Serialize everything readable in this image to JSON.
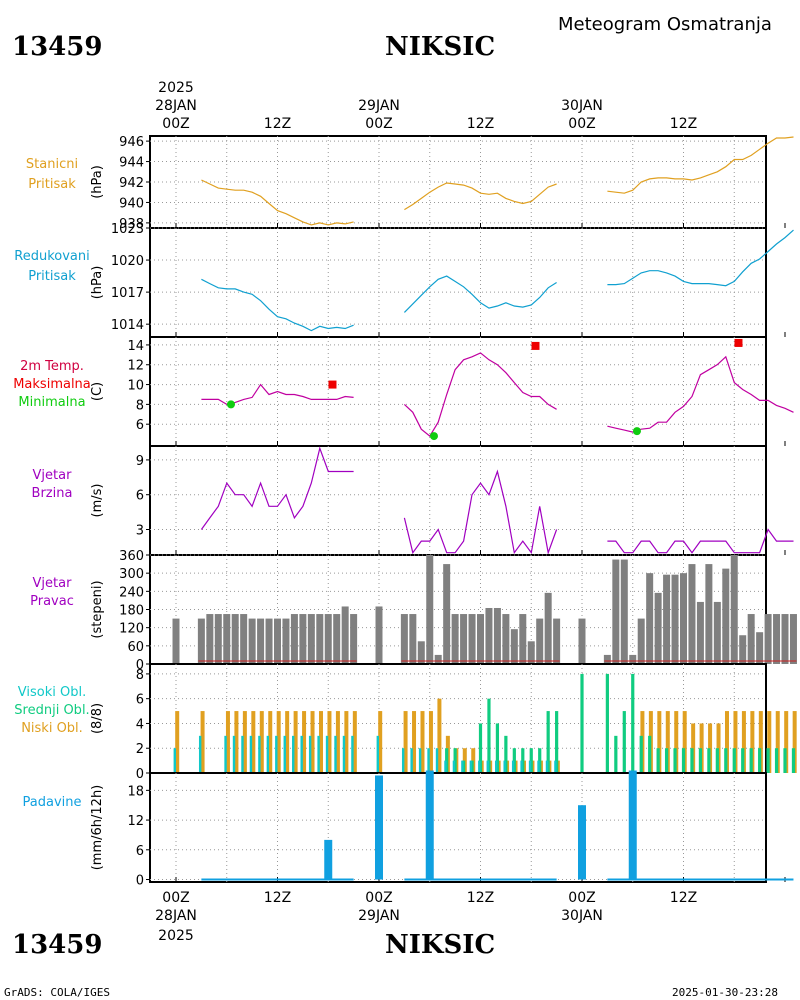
{
  "header": {
    "station_id": "13459",
    "station_name": "NIKSIC",
    "product": "Meteogram Osmatranja"
  },
  "time_axis": {
    "year": "2025",
    "top_ticks": [
      {
        "t": 0,
        "label": "00Z",
        "date": "28JAN"
      },
      {
        "t": 12,
        "label": "12Z"
      },
      {
        "t": 24,
        "label": "00Z",
        "date": "29JAN"
      },
      {
        "t": 36,
        "label": "12Z"
      },
      {
        "t": 48,
        "label": "00Z",
        "date": "30JAN"
      },
      {
        "t": 60,
        "label": "12Z"
      }
    ]
  },
  "footer": {
    "credit": "GrADS: COLA/IGES",
    "timestamp": "2025-01-30-23:28"
  },
  "colors": {
    "station_pressure": "#e0a020",
    "reduced_pressure": "#10a0d0",
    "temp_line": "#c000a0",
    "tmax": "#ee0000",
    "tmin": "#10cc10",
    "wind_speed": "#a000c0",
    "wind_dir": "#808080",
    "cloud_high": "#10c8c8",
    "cloud_mid": "#10cc80",
    "cloud_low": "#e0a020",
    "precip": "#10a0e0"
  },
  "chart_data": [
    {
      "type": "line",
      "panel": "station_pressure",
      "labels": [
        "Stanicni",
        "Pritisak"
      ],
      "ylabel": "(hPa)",
      "ylim": [
        937.5,
        946.5
      ],
      "yticks": [
        938,
        940,
        942,
        944,
        946
      ],
      "series": [
        {
          "x": [
            3,
            4,
            5,
            6,
            7,
            8,
            9,
            10,
            11,
            12,
            13,
            14,
            15,
            16,
            17,
            18,
            19,
            20,
            21
          ],
          "y": [
            942.2,
            941.8,
            941.4,
            941.3,
            941.2,
            941.2,
            941.0,
            940.6,
            939.9,
            939.2,
            938.9,
            938.5,
            938.1,
            937.8,
            938.0,
            937.8,
            938.0,
            937.9,
            938.1
          ]
        },
        {
          "x": [
            27,
            28,
            29,
            30,
            31,
            32,
            33,
            34,
            35,
            36,
            37,
            38,
            39,
            40,
            41,
            42,
            43,
            44,
            45
          ],
          "y": [
            939.3,
            939.8,
            940.4,
            941.0,
            941.5,
            941.9,
            941.8,
            941.7,
            941.4,
            940.9,
            940.8,
            940.9,
            940.4,
            940.1,
            939.9,
            940.1,
            940.8,
            941.5,
            941.8
          ]
        },
        {
          "x": [
            51,
            52,
            53,
            54,
            55,
            56,
            57,
            58,
            59,
            60,
            61,
            62,
            63,
            64,
            65,
            66,
            67,
            68,
            69,
            70,
            71,
            72,
            73
          ],
          "y": [
            941.1,
            941.0,
            940.9,
            941.2,
            942.0,
            942.3,
            942.4,
            942.4,
            942.3,
            942.3,
            942.2,
            942.4,
            942.7,
            943.0,
            943.5,
            944.2,
            944.2,
            944.6,
            945.2,
            945.8,
            946.3,
            946.3,
            946.4
          ]
        }
      ]
    },
    {
      "type": "line",
      "panel": "reduced_pressure",
      "labels": [
        "Redukovani",
        "Pritisak"
      ],
      "ylabel": "(hPa)",
      "ylim": [
        1012.8,
        1023.0
      ],
      "yticks": [
        1014,
        1017,
        1020,
        1023
      ],
      "series": [
        {
          "x": [
            3,
            4,
            5,
            6,
            7,
            8,
            9,
            10,
            11,
            12,
            13,
            14,
            15,
            16,
            17,
            18,
            19,
            20,
            21
          ],
          "y": [
            1018.2,
            1017.8,
            1017.4,
            1017.3,
            1017.3,
            1017.0,
            1016.8,
            1016.2,
            1015.4,
            1014.7,
            1014.5,
            1014.1,
            1013.8,
            1013.4,
            1013.8,
            1013.6,
            1013.7,
            1013.6,
            1013.9
          ]
        },
        {
          "x": [
            27,
            28,
            29,
            30,
            31,
            32,
            33,
            34,
            35,
            36,
            37,
            38,
            39,
            40,
            41,
            42,
            43,
            44,
            45
          ],
          "y": [
            1015.1,
            1015.9,
            1016.7,
            1017.5,
            1018.2,
            1018.5,
            1018.0,
            1017.5,
            1016.8,
            1016.0,
            1015.5,
            1015.7,
            1016.0,
            1015.7,
            1015.6,
            1015.8,
            1016.5,
            1017.4,
            1017.9
          ]
        },
        {
          "x": [
            51,
            52,
            53,
            54,
            55,
            56,
            57,
            58,
            59,
            60,
            61,
            62,
            63,
            64,
            65,
            66,
            67,
            68,
            69,
            70,
            71,
            72,
            73
          ],
          "y": [
            1017.7,
            1017.7,
            1017.8,
            1018.3,
            1018.8,
            1019.0,
            1019.0,
            1018.8,
            1018.5,
            1018.0,
            1017.8,
            1017.8,
            1017.8,
            1017.7,
            1017.6,
            1018.0,
            1018.9,
            1019.7,
            1020.1,
            1020.8,
            1021.5,
            1022.1,
            1022.8
          ]
        }
      ]
    },
    {
      "type": "line",
      "panel": "temperature",
      "labels": [
        "2m Temp.",
        "Maksimalna",
        "Minimalna"
      ],
      "ylabel": "(C)",
      "ylim": [
        3.8,
        14.8
      ],
      "yticks": [
        6,
        8,
        10,
        12,
        14
      ],
      "series": [
        {
          "x": [
            3,
            4,
            5,
            6,
            7,
            8,
            9,
            10,
            11,
            12,
            13,
            14,
            15,
            16,
            17,
            18,
            19,
            20,
            21
          ],
          "y": [
            8.5,
            8.5,
            8.5,
            8.0,
            8.2,
            8.5,
            8.7,
            10.0,
            9.0,
            9.3,
            9.0,
            9.0,
            8.8,
            8.5,
            8.5,
            8.5,
            8.5,
            8.8,
            8.7
          ]
        },
        {
          "x": [
            27,
            28,
            29,
            30,
            31,
            32,
            33,
            34,
            35,
            36,
            37,
            38,
            39,
            40,
            41,
            42,
            43,
            44,
            45
          ],
          "y": [
            8.0,
            7.2,
            5.5,
            4.8,
            6.2,
            9.0,
            11.5,
            12.5,
            12.8,
            13.2,
            12.5,
            12.0,
            11.2,
            10.2,
            9.2,
            8.8,
            8.8,
            8.0,
            7.5
          ]
        },
        {
          "x": [
            51,
            52,
            53,
            54,
            55,
            56,
            57,
            58,
            59,
            60,
            61,
            62,
            63,
            64,
            65,
            66,
            67,
            68,
            69,
            70,
            71,
            72,
            73
          ],
          "y": [
            5.8,
            5.6,
            5.4,
            5.2,
            5.5,
            5.6,
            6.2,
            6.2,
            7.2,
            7.8,
            8.8,
            11.0,
            11.5,
            12.0,
            12.8,
            10.2,
            9.5,
            9.0,
            8.4,
            8.4,
            7.9,
            7.6,
            7.2
          ]
        }
      ],
      "tmax": [
        {
          "x": 18.5,
          "y": 10.0
        },
        {
          "x": 42.5,
          "y": 13.9
        },
        {
          "x": 66.5,
          "y": 14.2
        }
      ],
      "tmin": [
        {
          "x": 6.5,
          "y": 8.0
        },
        {
          "x": 30.5,
          "y": 4.8
        },
        {
          "x": 54.5,
          "y": 5.3
        }
      ]
    },
    {
      "type": "line",
      "panel": "wind_speed",
      "labels": [
        "Vjetar",
        "Brzina"
      ],
      "ylabel": "(m/s)",
      "ylim": [
        0.8,
        10.2
      ],
      "yticks": [
        3,
        6,
        9
      ],
      "series": [
        {
          "x": [
            3,
            4,
            5,
            6,
            7,
            8,
            9,
            10,
            11,
            12,
            13,
            14,
            15,
            16,
            17,
            18,
            19,
            20,
            21
          ],
          "y": [
            3,
            4,
            5,
            7,
            6,
            6,
            5,
            7,
            5,
            5,
            6,
            4,
            5,
            7,
            10,
            8,
            8,
            8,
            8
          ]
        },
        {
          "x": [
            27,
            28,
            29,
            30,
            31,
            32,
            33,
            34,
            35,
            36,
            37,
            38,
            39,
            40,
            41,
            42,
            43,
            44,
            45
          ],
          "y": [
            4,
            1,
            2,
            2,
            3,
            1,
            1,
            2,
            6,
            7,
            6,
            8,
            5,
            1,
            2,
            1,
            5,
            1,
            3
          ]
        },
        {
          "x": [
            51,
            52,
            53,
            54,
            55,
            56,
            57,
            58,
            59,
            60,
            61,
            62,
            63,
            64,
            65,
            66,
            67,
            68,
            69,
            70,
            71,
            72,
            73
          ],
          "y": [
            2,
            2,
            1,
            1,
            2,
            2,
            1,
            1,
            2,
            2,
            1,
            2,
            2,
            2,
            2,
            1,
            1,
            1,
            1,
            3,
            2,
            2,
            2
          ]
        }
      ]
    },
    {
      "type": "bar",
      "panel": "wind_direction",
      "labels": [
        "Vjetar",
        "Pravac"
      ],
      "ylabel": "(stepeni)",
      "ylim": [
        0,
        360
      ],
      "yticks": [
        0,
        60,
        120,
        180,
        240,
        300,
        360
      ],
      "x": [
        0,
        3,
        4,
        5,
        6,
        7,
        8,
        9,
        10,
        11,
        12,
        13,
        14,
        15,
        16,
        17,
        18,
        19,
        20,
        21,
        24,
        27,
        28,
        29,
        30,
        31,
        32,
        33,
        34,
        35,
        36,
        37,
        38,
        39,
        40,
        41,
        42,
        43,
        44,
        45,
        48,
        51,
        52,
        53,
        54,
        55,
        56,
        57,
        58,
        59,
        60,
        61,
        62,
        63,
        64,
        65,
        66,
        67,
        68,
        69,
        70,
        71,
        72,
        73
      ],
      "values": [
        150,
        150,
        165,
        165,
        165,
        165,
        165,
        150,
        150,
        150,
        150,
        150,
        165,
        165,
        165,
        165,
        165,
        165,
        190,
        165,
        190,
        165,
        165,
        75,
        360,
        30,
        330,
        165,
        165,
        165,
        165,
        185,
        185,
        165,
        115,
        165,
        75,
        150,
        235,
        150,
        150,
        30,
        345,
        345,
        30,
        150,
        300,
        235,
        295,
        295,
        300,
        330,
        205,
        330,
        205,
        315,
        360,
        95,
        165,
        105,
        165,
        165,
        165,
        165
      ]
    },
    {
      "type": "bar",
      "panel": "cloud_cover",
      "labels": [
        "Visoki Obl.",
        "Srednji Obl.",
        "Niski Obl."
      ],
      "ylabel": "(8/8)",
      "ylim": [
        0,
        8.8
      ],
      "yticks": [
        0,
        2,
        4,
        6,
        8
      ],
      "x": [
        0,
        3,
        6,
        7,
        8,
        9,
        10,
        11,
        12,
        13,
        14,
        15,
        16,
        17,
        18,
        19,
        20,
        21,
        24,
        27,
        28,
        29,
        30,
        31,
        32,
        33,
        34,
        35,
        36,
        37,
        38,
        39,
        40,
        41,
        42,
        43,
        44,
        45,
        48,
        51,
        52,
        53,
        54,
        55,
        56,
        57,
        58,
        59,
        60,
        61,
        62,
        63,
        64,
        65,
        66,
        67,
        68,
        69,
        70,
        71,
        72,
        73
      ],
      "series": [
        {
          "name": "Visoki Obl.",
          "values": [
            2,
            3,
            3,
            3,
            3,
            3,
            3,
            3,
            3,
            3,
            3,
            3,
            3,
            3,
            3,
            3,
            3,
            3,
            3,
            2,
            2,
            2,
            2,
            2,
            1,
            1,
            1,
            1,
            1,
            1,
            1,
            1,
            1,
            1,
            1,
            1,
            1,
            1,
            0,
            0,
            0,
            0,
            0,
            0,
            0,
            0,
            0,
            0,
            0,
            0,
            0,
            0,
            0,
            0,
            0,
            0,
            0,
            0,
            0,
            0,
            0,
            0
          ]
        },
        {
          "name": "Srednji Obl.",
          "values": [
            0,
            0,
            0,
            0,
            0,
            0,
            0,
            0,
            0,
            0,
            0,
            0,
            0,
            0,
            0,
            0,
            0,
            0,
            0,
            0,
            0,
            0,
            0,
            0,
            2,
            2,
            1,
            1,
            4,
            6,
            4,
            3,
            2,
            2,
            2,
            2,
            5,
            5,
            8,
            8,
            3,
            5,
            8,
            3,
            3,
            2,
            2,
            2,
            2,
            2,
            2,
            2,
            2,
            2,
            2,
            2,
            2,
            2,
            2,
            2,
            2,
            2
          ]
        },
        {
          "name": "Niski Obl.",
          "values": [
            5,
            5,
            5,
            5,
            5,
            5,
            5,
            5,
            5,
            5,
            5,
            5,
            5,
            5,
            5,
            5,
            5,
            5,
            5,
            5,
            5,
            5,
            5,
            6,
            3,
            2,
            2,
            2,
            1,
            1,
            1,
            1,
            1,
            1,
            1,
            1,
            1,
            1,
            0,
            0,
            0,
            0,
            0,
            5,
            5,
            5,
            5,
            5,
            5,
            4,
            4,
            4,
            4,
            5,
            5,
            5,
            5,
            5,
            5,
            5,
            5,
            5
          ]
        }
      ]
    },
    {
      "type": "bar",
      "panel": "precipitation",
      "labels": [
        "Padavine"
      ],
      "ylabel": "(mm/6h/12h)",
      "ylim": [
        -0.5,
        21.5
      ],
      "yticks": [
        0,
        6,
        12,
        18
      ],
      "x": [
        18,
        24,
        30,
        48,
        54
      ],
      "values": [
        8,
        21,
        22,
        15,
        22
      ]
    }
  ]
}
